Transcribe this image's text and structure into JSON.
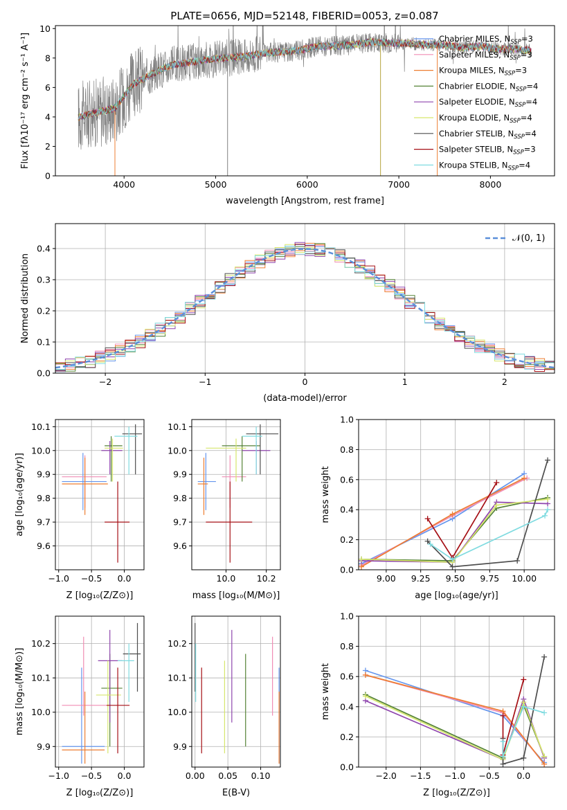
{
  "title": "PLATE=0656, MJD=52148, FIBERID=0053, z=0.087",
  "colors": {
    "Chabrier MILES": "#6495ed",
    "Salpeter MILES": "#f08cb4",
    "Kroupa MILES": "#ed7d31",
    "Chabrier ELODIE": "#548235",
    "Salpeter ELODIE": "#8e44ad",
    "Kroupa ELODIE": "#d6e66c",
    "Chabrier STELIB": "#4d4d4d",
    "Salpeter STELIB": "#a50f15",
    "Kroupa STELIB": "#7fdbe0",
    "observed": "#808080",
    "normal_curve": "#5b8fd9"
  },
  "spectrum": {
    "xlabel": "wavelength [Angstrom, rest frame]",
    "ylabel": "Flux [fλ10⁻¹⁷ erg cm⁻² s⁻¹ A⁻¹]",
    "xticks": [
      "4000",
      "5000",
      "6000",
      "7000",
      "8000"
    ],
    "yticks": [
      "0",
      "2",
      "4",
      "6",
      "8",
      "10"
    ],
    "legend": [
      {
        "name": "Chabrier MILES",
        "label": "Chabrier MILES, N_SSP=3"
      },
      {
        "name": "Salpeter MILES",
        "label": "Salpeter MILES, N_SSP=3"
      },
      {
        "name": "Kroupa MILES",
        "label": "Kroupa MILES, N_SSP=3"
      },
      {
        "name": "Chabrier ELODIE",
        "label": "Chabrier ELODIE, N_SSP=4"
      },
      {
        "name": "Salpeter ELODIE",
        "label": "Salpeter ELODIE, N_SSP=4"
      },
      {
        "name": "Kroupa ELODIE",
        "label": "Kroupa ELODIE, N_SSP=4"
      },
      {
        "name": "Chabrier STELIB",
        "label": "Chabrier STELIB, N_SSP=4"
      },
      {
        "name": "Salpeter STELIB",
        "label": "Salpeter STELIB, N_SSP=3"
      },
      {
        "name": "Kroupa STELIB",
        "label": "Kroupa STELIB, N_SSP=4"
      }
    ]
  },
  "residuals": {
    "xlabel": "(data-model)/error",
    "ylabel": "Normed distribution",
    "xticks": [
      "−2",
      "−1",
      "0",
      "1",
      "2"
    ],
    "yticks": [
      "0.0",
      "0.1",
      "0.2",
      "0.3",
      "0.4"
    ],
    "legend_label": "𝒩(0, 1)"
  },
  "panels": {
    "age_Z": {
      "xlabel": "Z [log₁₀(Z/Z⊙)]",
      "ylabel": "age  [log₁₀(age/yr)]",
      "xticks": [
        "−1.0",
        "−0.5",
        "0.0"
      ],
      "yticks": [
        "9.6",
        "9.7",
        "9.8",
        "9.9",
        "10.0",
        "10.1"
      ]
    },
    "age_mass": {
      "xlabel": "mass [log₁₀(M/M⊙)]",
      "xticks": [
        "10.0",
        "10.2"
      ],
      "yticks": [
        "9.6",
        "9.7",
        "9.8",
        "9.9",
        "10.0",
        "10.1"
      ]
    },
    "mw_age": {
      "xlabel": "age  [log₁₀(age/yr)]",
      "ylabel": "mass weight",
      "xticks": [
        "9.00",
        "9.25",
        "9.50",
        "9.75",
        "10.00"
      ],
      "yticks": [
        "0.0",
        "0.2",
        "0.4",
        "0.6",
        "0.8",
        "1.0"
      ]
    },
    "mass_Z": {
      "xlabel": "Z [log₁₀(Z/Z⊙)]",
      "ylabel": "mass [log₁₀(M/M⊙)]",
      "xticks": [
        "−1.0",
        "−0.5",
        "0.0"
      ],
      "yticks": [
        "9.9",
        "10.0",
        "10.1",
        "10.2"
      ]
    },
    "mass_ebv": {
      "xlabel": "E(B-V)",
      "xticks": [
        "0.00",
        "0.05",
        "0.10"
      ],
      "yticks": [
        "9.9",
        "10.0",
        "10.1",
        "10.2"
      ]
    },
    "mw_Z": {
      "xlabel": "Z [log₁₀(Z/Z⊙)]",
      "ylabel": "mass weight",
      "xticks": [
        "−2.0",
        "−1.5",
        "−1.0",
        "−0.5",
        "0.0"
      ],
      "yticks": [
        "0.0",
        "0.2",
        "0.4",
        "0.6",
        "0.8",
        "1.0"
      ]
    }
  },
  "chart_data": [
    {
      "type": "line",
      "title": "PLATE=0656, MJD=52148, FIBERID=0053, z=0.087",
      "xlabel": "wavelength [Angstrom, rest frame]",
      "ylabel": "Flux [fλ10⁻¹⁷ erg cm⁻² s⁻¹ A⁻¹]",
      "xlim": [
        3250,
        8700
      ],
      "ylim": [
        0,
        10.2
      ],
      "grid": false,
      "legend": "right",
      "continuum": {
        "x": [
          3500,
          3700,
          3900,
          4100,
          4300,
          4500,
          4700,
          4900,
          5100,
          5300,
          5500,
          5700,
          5900,
          6100,
          6300,
          6500,
          6700,
          6900,
          7100,
          7300,
          7500,
          7700,
          7900,
          8100,
          8300,
          8450
        ],
        "y": [
          4.0,
          4.3,
          4.6,
          6.2,
          6.9,
          7.5,
          7.7,
          7.9,
          8.0,
          8.1,
          8.3,
          8.4,
          8.5,
          8.8,
          8.8,
          8.9,
          9.1,
          9.0,
          9.0,
          8.9,
          8.9,
          8.7,
          8.8,
          8.6,
          8.6,
          8.5
        ]
      }
    },
    {
      "type": "line",
      "xlabel": "(data-model)/error",
      "ylabel": "Normed distribution",
      "xlim": [
        -2.5,
        2.5
      ],
      "ylim": [
        0,
        0.48
      ],
      "grid": true,
      "legend": "top-right",
      "bin_width": 0.1,
      "series": [
        {
          "name": "𝒩(0, 1)",
          "function": "gaussian",
          "mean": 0,
          "sigma": 1
        }
      ]
    },
    {
      "type": "scatter",
      "xlabel": "Z [log₁₀(Z/Z⊙)]",
      "ylabel": "age  [log₁₀(age/yr)]",
      "xlim": [
        -1.05,
        0.3
      ],
      "ylim": [
        9.5,
        10.13
      ],
      "grid": true,
      "points": [
        {
          "name": "Chabrier MILES",
          "x": -0.63,
          "y": 9.87,
          "xlo": -0.95,
          "xhi": -0.27,
          "ylo": 9.75,
          "yhi": 9.99
        },
        {
          "name": "Salpeter MILES",
          "x": -0.6,
          "y": 9.89,
          "xlo": -0.95,
          "xhi": -0.27,
          "ylo": 9.76,
          "yhi": 9.98
        },
        {
          "name": "Kroupa MILES",
          "x": -0.6,
          "y": 9.86,
          "xlo": -0.95,
          "xhi": -0.25,
          "ylo": 9.73,
          "yhi": 9.97
        },
        {
          "name": "Chabrier ELODIE",
          "x": -0.2,
          "y": 10.02,
          "xlo": -0.3,
          "xhi": -0.03,
          "ylo": 9.87,
          "yhi": 10.06
        },
        {
          "name": "Salpeter ELODIE",
          "x": -0.22,
          "y": 10.0,
          "xlo": -0.35,
          "xhi": -0.03,
          "ylo": 9.9,
          "yhi": 10.04
        },
        {
          "name": "Kroupa ELODIE",
          "x": -0.18,
          "y": 10.01,
          "xlo": -0.3,
          "xhi": -0.02,
          "ylo": 9.87,
          "yhi": 10.05
        },
        {
          "name": "Chabrier STELIB",
          "x": 0.17,
          "y": 10.07,
          "xlo": -0.03,
          "xhi": 0.27,
          "ylo": 9.9,
          "yhi": 10.11
        },
        {
          "name": "Salpeter STELIB",
          "x": -0.1,
          "y": 9.7,
          "xlo": -0.3,
          "xhi": 0.08,
          "ylo": 9.53,
          "yhi": 9.87
        },
        {
          "name": "Kroupa STELIB",
          "x": 0.07,
          "y": 10.06,
          "xlo": -0.15,
          "xhi": 0.2,
          "ylo": 9.9,
          "yhi": 10.1
        }
      ]
    },
    {
      "type": "scatter",
      "xlabel": "mass [log₁₀(M/M⊙)]",
      "ylabel": "age  [log₁₀(age/yr)]",
      "xlim": [
        9.83,
        10.27
      ],
      "ylim": [
        9.5,
        10.13
      ],
      "grid": true,
      "points": [
        {
          "name": "Chabrier MILES",
          "x": 9.9,
          "y": 9.87,
          "xlo": 9.86,
          "xhi": 9.95,
          "ylo": 9.75,
          "yhi": 9.99
        },
        {
          "name": "Salpeter MILES",
          "x": 10.02,
          "y": 9.89,
          "xlo": 9.98,
          "xhi": 10.1,
          "ylo": 9.76,
          "yhi": 9.98
        },
        {
          "name": "Kroupa MILES",
          "x": 9.89,
          "y": 9.86,
          "xlo": 9.86,
          "xhi": 9.91,
          "ylo": 9.73,
          "yhi": 9.97
        },
        {
          "name": "Chabrier ELODIE",
          "x": 10.08,
          "y": 10.02,
          "xlo": 9.98,
          "xhi": 10.17,
          "ylo": 9.87,
          "yhi": 10.06
        },
        {
          "name": "Salpeter ELODIE",
          "x": 10.15,
          "y": 10.0,
          "xlo": 10.08,
          "xhi": 10.22,
          "ylo": 9.9,
          "yhi": 10.04
        },
        {
          "name": "Kroupa ELODIE",
          "x": 10.05,
          "y": 10.01,
          "xlo": 9.9,
          "xhi": 10.1,
          "ylo": 9.87,
          "yhi": 10.05
        },
        {
          "name": "Chabrier STELIB",
          "x": 10.17,
          "y": 10.07,
          "xlo": 10.1,
          "xhi": 10.26,
          "ylo": 9.9,
          "yhi": 10.11
        },
        {
          "name": "Salpeter STELIB",
          "x": 10.02,
          "y": 9.7,
          "xlo": 9.9,
          "xhi": 10.13,
          "ylo": 9.53,
          "yhi": 9.87
        },
        {
          "name": "Kroupa STELIB",
          "x": 10.15,
          "y": 10.06,
          "xlo": 10.08,
          "xhi": 10.18,
          "ylo": 9.9,
          "yhi": 10.1
        }
      ]
    },
    {
      "type": "line",
      "xlabel": "age  [log₁₀(age/yr)]",
      "ylabel": "mass weight",
      "xlim": [
        8.8,
        10.22
      ],
      "ylim": [
        0,
        1
      ],
      "grid": true,
      "series": [
        {
          "name": "Chabrier MILES",
          "x": [
            8.82,
            9.48,
            10.0
          ],
          "y": [
            0.04,
            0.34,
            0.64
          ]
        },
        {
          "name": "Salpeter MILES",
          "x": [
            8.82,
            9.48,
            10.02
          ],
          "y": [
            0.03,
            0.36,
            0.61
          ]
        },
        {
          "name": "Kroupa MILES",
          "x": [
            8.82,
            9.48,
            10.0
          ],
          "y": [
            0.02,
            0.37,
            0.61
          ]
        },
        {
          "name": "Chabrier ELODIE",
          "x": [
            8.82,
            9.48,
            9.8,
            10.17
          ],
          "y": [
            0.07,
            0.06,
            0.41,
            0.48
          ]
        },
        {
          "name": "Salpeter ELODIE",
          "x": [
            8.82,
            9.48,
            9.8,
            10.17
          ],
          "y": [
            0.06,
            0.05,
            0.45,
            0.44
          ]
        },
        {
          "name": "Kroupa ELODIE",
          "x": [
            8.82,
            9.48,
            9.8,
            10.17
          ],
          "y": [
            0.07,
            0.05,
            0.43,
            0.47
          ]
        },
        {
          "name": "Chabrier STELIB",
          "x": [
            9.3,
            9.48,
            9.95,
            10.17
          ],
          "y": [
            0.19,
            0.02,
            0.06,
            0.73
          ]
        },
        {
          "name": "Salpeter STELIB",
          "x": [
            9.3,
            9.48,
            9.8
          ],
          "y": [
            0.34,
            0.08,
            0.58
          ]
        },
        {
          "name": "Kroupa STELIB",
          "x": [
            9.32,
            9.48,
            10.15,
            10.17
          ],
          "y": [
            0.17,
            0.07,
            0.36,
            0.4
          ]
        }
      ]
    },
    {
      "type": "scatter",
      "xlabel": "Z [log₁₀(Z/Z⊙)]",
      "ylabel": "mass [log₁₀(M/M⊙)]",
      "xlim": [
        -1.05,
        0.3
      ],
      "ylim": [
        9.84,
        10.28
      ],
      "grid": true,
      "points": [
        {
          "name": "Chabrier MILES",
          "x": -0.65,
          "y": 9.9,
          "xlo": -0.95,
          "xhi": -0.3,
          "ylo": 9.85,
          "yhi": 10.13
        },
        {
          "name": "Salpeter MILES",
          "x": -0.62,
          "y": 10.02,
          "xlo": -0.95,
          "xhi": -0.27,
          "ylo": 9.99,
          "yhi": 10.22
        },
        {
          "name": "Kroupa MILES",
          "x": -0.6,
          "y": 9.89,
          "xlo": -0.95,
          "xhi": -0.3,
          "ylo": 9.85,
          "yhi": 10.06
        },
        {
          "name": "Chabrier ELODIE",
          "x": -0.22,
          "y": 10.07,
          "xlo": -0.35,
          "xhi": -0.03,
          "ylo": 9.9,
          "yhi": 10.17
        },
        {
          "name": "Salpeter ELODIE",
          "x": -0.22,
          "y": 10.15,
          "xlo": -0.4,
          "xhi": -0.03,
          "ylo": 9.97,
          "yhi": 10.24
        },
        {
          "name": "Kroupa ELODIE",
          "x": -0.25,
          "y": 10.05,
          "xlo": -0.43,
          "xhi": -0.05,
          "ylo": 9.88,
          "yhi": 10.15
        },
        {
          "name": "Chabrier STELIB",
          "x": 0.2,
          "y": 10.17,
          "xlo": -0.02,
          "xhi": 0.25,
          "ylo": 10.06,
          "yhi": 10.26
        },
        {
          "name": "Salpeter STELIB",
          "x": -0.1,
          "y": 10.02,
          "xlo": -0.27,
          "xhi": 0.08,
          "ylo": 9.88,
          "yhi": 10.13
        },
        {
          "name": "Kroupa STELIB",
          "x": 0.07,
          "y": 10.15,
          "xlo": -0.1,
          "xhi": 0.15,
          "ylo": 10.03,
          "yhi": 10.2
        }
      ]
    },
    {
      "type": "scatter",
      "xlabel": "E(B-V)",
      "ylabel": "mass [log₁₀(M/M⊙)]",
      "xlim": [
        -0.005,
        0.13
      ],
      "ylim": [
        9.84,
        10.28
      ],
      "grid": true,
      "points": [
        {
          "name": "Chabrier MILES",
          "x": 0.128,
          "y": 9.9,
          "ylo": 9.85,
          "yhi": 10.13
        },
        {
          "name": "Salpeter MILES",
          "x": 0.118,
          "y": 10.02,
          "ylo": 9.99,
          "yhi": 10.22
        },
        {
          "name": "Kroupa MILES",
          "x": 0.128,
          "y": 9.89,
          "ylo": 9.85,
          "yhi": 10.06
        },
        {
          "name": "Chabrier ELODIE",
          "x": 0.077,
          "y": 10.07,
          "ylo": 9.9,
          "yhi": 10.17
        },
        {
          "name": "Salpeter ELODIE",
          "x": 0.056,
          "y": 10.15,
          "ylo": 9.97,
          "yhi": 10.24
        },
        {
          "name": "Kroupa ELODIE",
          "x": 0.045,
          "y": 10.05,
          "ylo": 9.88,
          "yhi": 10.15
        },
        {
          "name": "Chabrier STELIB",
          "x": 0.0,
          "y": 10.17,
          "ylo": 10.06,
          "yhi": 10.26
        },
        {
          "name": "Salpeter STELIB",
          "x": 0.01,
          "y": 10.02,
          "ylo": 9.88,
          "yhi": 10.13
        },
        {
          "name": "Kroupa STELIB",
          "x": 0.001,
          "y": 10.15,
          "ylo": 10.03,
          "yhi": 10.2
        }
      ]
    },
    {
      "type": "line",
      "xlabel": "Z [log₁₀(Z/Z⊙)]",
      "ylabel": "mass weight",
      "xlim": [
        -2.4,
        0.45
      ],
      "ylim": [
        0,
        1
      ],
      "grid": true,
      "series": [
        {
          "name": "Chabrier MILES",
          "x": [
            -2.3,
            -0.3,
            0.3
          ],
          "y": [
            0.64,
            0.34,
            0.03
          ]
        },
        {
          "name": "Salpeter MILES",
          "x": [
            -2.3,
            -0.3,
            0.3
          ],
          "y": [
            0.61,
            0.36,
            0.02
          ]
        },
        {
          "name": "Kroupa MILES",
          "x": [
            -2.3,
            -0.3,
            0.3
          ],
          "y": [
            0.61,
            0.37,
            0.02
          ]
        },
        {
          "name": "Chabrier ELODIE",
          "x": [
            -2.3,
            -0.3,
            0.0,
            0.3
          ],
          "y": [
            0.48,
            0.06,
            0.41,
            0.07
          ]
        },
        {
          "name": "Salpeter ELODIE",
          "x": [
            -2.3,
            -0.3,
            0.0,
            0.3
          ],
          "y": [
            0.44,
            0.05,
            0.45,
            0.06
          ]
        },
        {
          "name": "Kroupa ELODIE",
          "x": [
            -2.3,
            -0.3,
            0.0,
            0.3
          ],
          "y": [
            0.47,
            0.05,
            0.43,
            0.07
          ]
        },
        {
          "name": "Chabrier STELIB",
          "x": [
            -0.3,
            -0.3,
            0.0,
            0.3
          ],
          "y": [
            0.19,
            0.02,
            0.06,
            0.73
          ]
        },
        {
          "name": "Salpeter STELIB",
          "x": [
            -0.3,
            -0.3,
            0.0
          ],
          "y": [
            0.34,
            0.08,
            0.58
          ]
        },
        {
          "name": "Kroupa STELIB",
          "x": [
            -0.3,
            -0.3,
            0.0,
            0.3
          ],
          "y": [
            0.17,
            0.07,
            0.4,
            0.36
          ]
        }
      ]
    }
  ]
}
